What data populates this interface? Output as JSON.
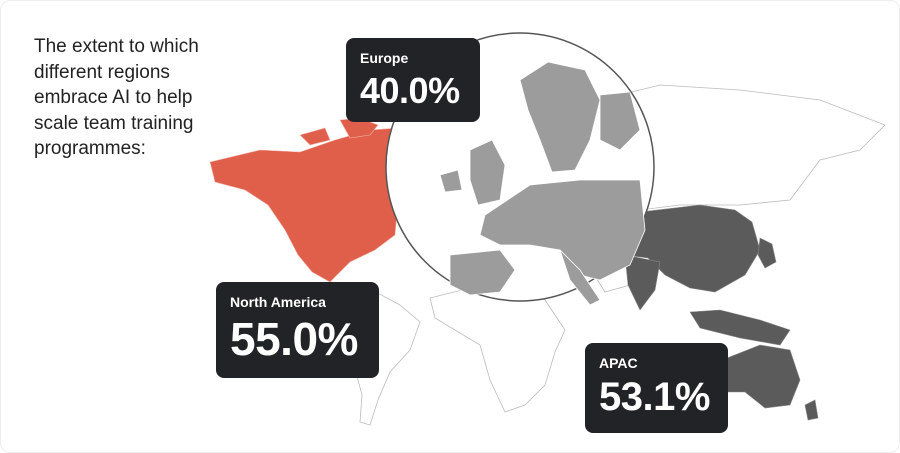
{
  "intro": "The extent to which different regions embrace AI to help scale team training programmes:",
  "colors": {
    "north_america": "#e05f4b",
    "europe": "#9c9c9c",
    "apac": "#5b5b5c",
    "other": "#ffffff",
    "card": "#222326"
  },
  "regions": [
    {
      "name": "Europe",
      "value": "40.0%"
    },
    {
      "name": "North America",
      "value": "55.0%"
    },
    {
      "name": "APAC",
      "value": "53.1%"
    }
  ]
}
